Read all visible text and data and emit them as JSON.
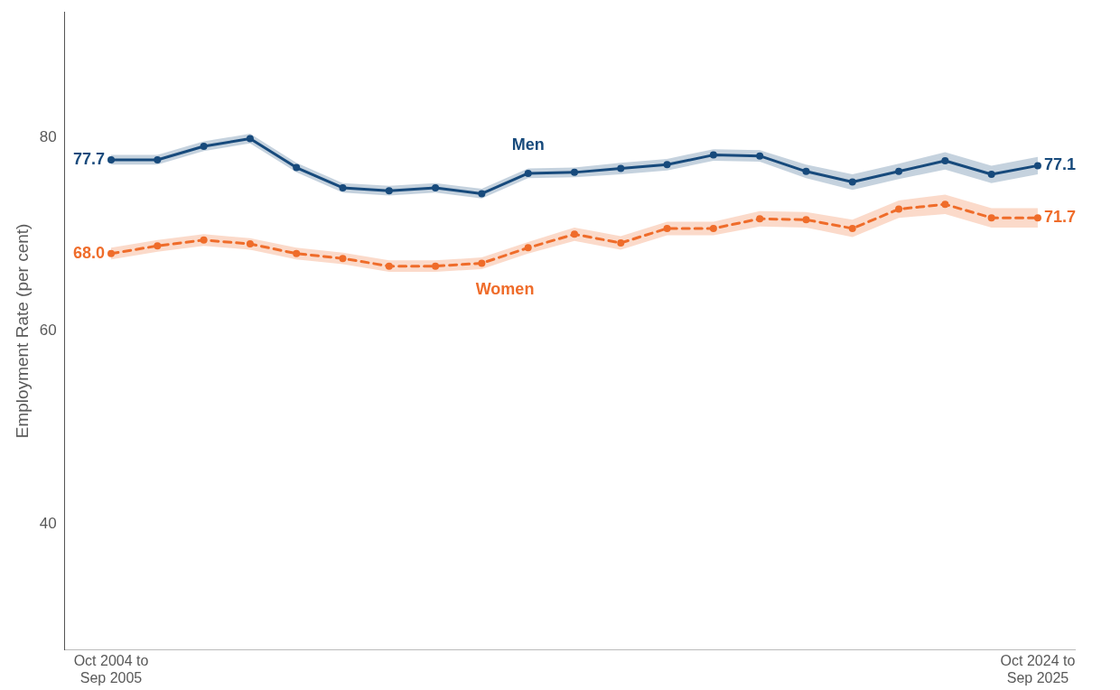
{
  "chart_data": {
    "type": "line",
    "ylabel": "Employment Rate (per cent)",
    "categories": [
      "Oct 2004 to Sep 2005",
      null,
      null,
      null,
      null,
      null,
      null,
      null,
      null,
      null,
      null,
      null,
      null,
      null,
      null,
      null,
      null,
      null,
      null,
      null,
      "Oct 2024 to Sep 2025"
    ],
    "series": [
      {
        "name": "Men",
        "color": "#174a7c",
        "line_style": "solid",
        "values": [
          77.7,
          77.7,
          79.1,
          79.9,
          76.9,
          74.8,
          74.5,
          74.8,
          74.2,
          76.3,
          76.4,
          76.8,
          77.2,
          78.2,
          78.1,
          76.5,
          75.4,
          76.5,
          77.6,
          76.2,
          77.1
        ],
        "lower": [
          77.2,
          77.2,
          78.6,
          79.4,
          76.4,
          74.3,
          74.0,
          74.3,
          73.7,
          75.8,
          75.9,
          76.2,
          76.6,
          77.6,
          77.5,
          75.8,
          74.6,
          75.7,
          76.7,
          75.3,
          76.2
        ],
        "upper": [
          78.2,
          78.2,
          79.6,
          80.4,
          77.4,
          75.3,
          75.0,
          75.3,
          74.7,
          76.8,
          76.9,
          77.4,
          77.8,
          78.8,
          78.7,
          77.2,
          76.2,
          77.3,
          78.5,
          77.1,
          78.0
        ],
        "value_labels": [
          "77.7",
          null,
          null,
          null,
          null,
          null,
          null,
          null,
          null,
          null,
          null,
          null,
          null,
          null,
          null,
          null,
          null,
          null,
          null,
          null,
          "77.1"
        ]
      },
      {
        "name": "Women",
        "color": "#ef6c2a",
        "line_style": "dashed",
        "values": [
          68.0,
          68.8,
          69.4,
          69.0,
          68.0,
          67.5,
          66.7,
          66.7,
          67.0,
          68.6,
          70.0,
          69.1,
          70.6,
          70.6,
          71.6,
          71.5,
          70.6,
          72.6,
          73.1,
          71.7,
          71.7
        ],
        "lower": [
          67.4,
          68.2,
          68.8,
          68.4,
          67.4,
          66.9,
          66.1,
          66.1,
          66.4,
          68.0,
          69.3,
          68.4,
          69.9,
          69.9,
          70.8,
          70.7,
          69.7,
          71.7,
          72.1,
          70.7,
          70.7
        ],
        "upper": [
          68.6,
          69.4,
          70.0,
          69.6,
          68.6,
          68.1,
          67.3,
          67.3,
          67.6,
          69.2,
          70.7,
          69.8,
          71.3,
          71.3,
          72.4,
          72.3,
          71.5,
          73.5,
          74.1,
          72.7,
          72.7
        ],
        "value_labels": [
          "68.0",
          null,
          null,
          null,
          null,
          null,
          null,
          null,
          null,
          null,
          null,
          null,
          null,
          null,
          null,
          null,
          null,
          null,
          null,
          null,
          "71.7"
        ]
      }
    ],
    "ylim": [
      27,
      93
    ],
    "yticks": [
      40,
      60,
      80
    ],
    "grid": false,
    "legend": false,
    "marker": "circle"
  }
}
